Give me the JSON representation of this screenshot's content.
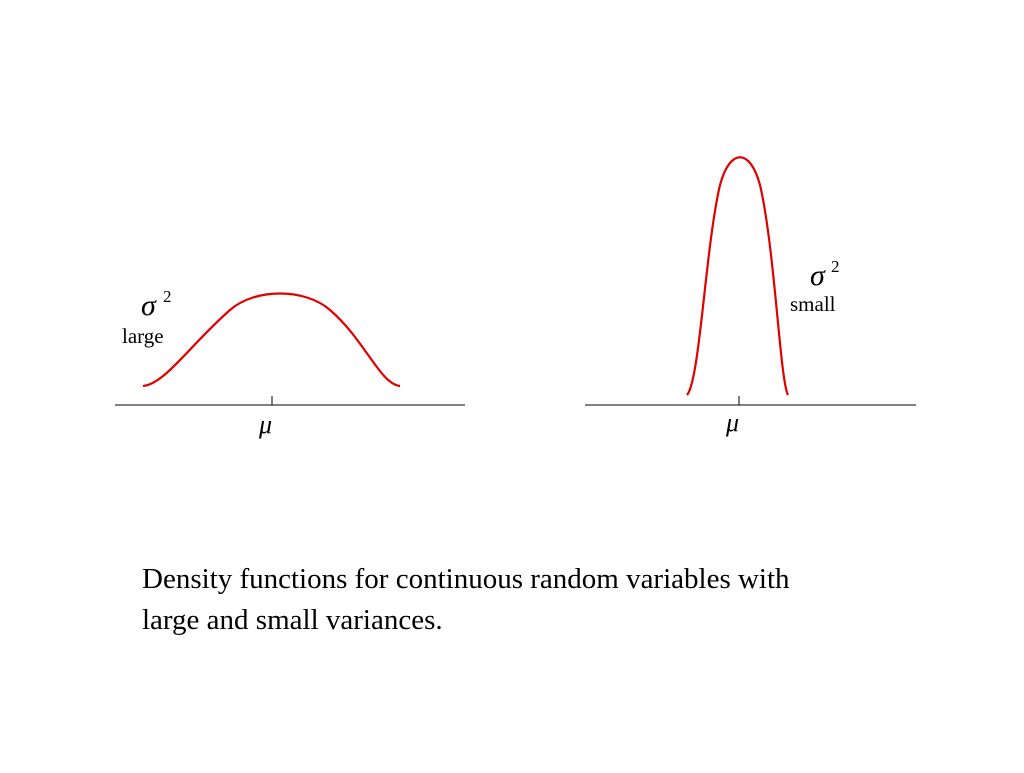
{
  "panels": [
    {
      "symbol": "σ",
      "superscript": "2",
      "label": "large",
      "mean": "μ"
    },
    {
      "symbol": "σ",
      "superscript": "2",
      "label": "small",
      "mean": "μ"
    }
  ],
  "caption": [
    "Density functions for continuous random variables with",
    "large and small variances."
  ]
}
